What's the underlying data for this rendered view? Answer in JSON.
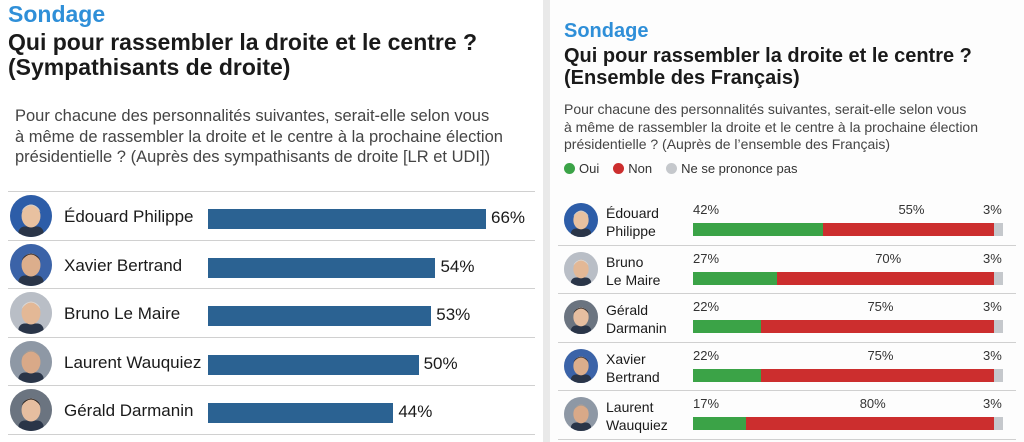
{
  "colors": {
    "bar": "#2b6292",
    "oui": "#3ba347",
    "non": "#cc2e2e",
    "nsp": "#c5c8cc",
    "kicker": "#2f8fd8"
  },
  "left": {
    "kicker": "Sondage",
    "title": [
      "Qui pour rassembler la droite et le centre ?",
      "(Sympathisants de droite)"
    ],
    "description": [
      "Pour chacune des personnalités suivantes, serait-elle selon vous",
      "à même de rassembler la droite et le centre à la prochaine élection",
      "présidentielle ? (Auprès des sympathisants de droite [LR et UDI])"
    ]
  },
  "right": {
    "kicker": "Sondage",
    "title": [
      "Qui pour rassembler la droite et le centre ?",
      "(Ensemble des Français)"
    ],
    "description": [
      "Pour chacune des personnalités suivantes, serait-elle selon vous",
      "à même de rassembler la droite et le centre à la prochaine élection",
      "présidentielle ? (Auprès de l’ensemble des Français)"
    ],
    "legend": [
      "Oui",
      "Non",
      "Ne se prononce pas"
    ]
  },
  "chart_data": [
    {
      "type": "bar",
      "title": "Qui pour rassembler la droite et le centre ? (Sympathisants de droite)",
      "categories": [
        "Édouard Philippe",
        "Xavier Bertrand",
        "Bruno Le Maire",
        "Laurent Wauquiez",
        "Gérald Darmanin"
      ],
      "values": [
        66,
        54,
        53,
        50,
        44
      ],
      "labels": [
        "66%",
        "54%",
        "53%",
        "50%",
        "44%"
      ],
      "unit": "%",
      "orientation": "horizontal",
      "xlim": [
        0,
        66
      ]
    },
    {
      "type": "bar",
      "stacked": true,
      "orientation": "horizontal",
      "title": "Qui pour rassembler la droite et le centre ? (Ensemble des Français)",
      "categories": [
        [
          "Édouard",
          "Philippe"
        ],
        [
          "Bruno",
          "Le Maire"
        ],
        [
          "Gérald",
          "Darmanin"
        ],
        [
          "Xavier",
          "Bertrand"
        ],
        [
          "Laurent",
          "Wauquiez"
        ]
      ],
      "series": [
        {
          "name": "Oui",
          "values": [
            42,
            27,
            22,
            22,
            17
          ],
          "labels": [
            "42%",
            "27%",
            "22%",
            "22%",
            "17%"
          ]
        },
        {
          "name": "Non",
          "values": [
            55,
            70,
            75,
            75,
            80
          ],
          "labels": [
            "55%",
            "70%",
            "75%",
            "75%",
            "80%"
          ]
        },
        {
          "name": "Ne se prononce pas",
          "values": [
            3,
            3,
            3,
            3,
            3
          ],
          "labels": [
            "3%",
            "3%",
            "3%",
            "3%",
            "3%"
          ]
        }
      ],
      "legend_position": "top-left",
      "unit": "%"
    }
  ]
}
